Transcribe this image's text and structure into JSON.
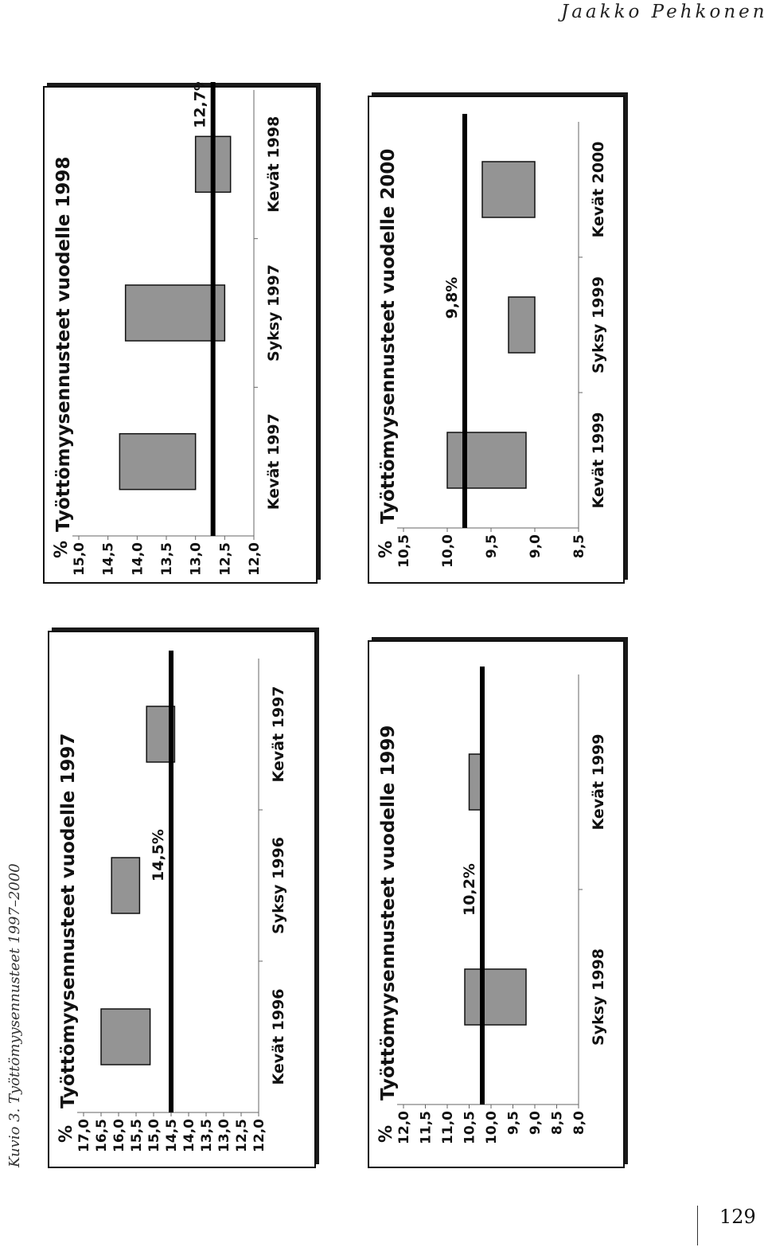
{
  "header": {
    "running_head": "Jaakko Pehkonen"
  },
  "caption": "Kuvio 3. Työttömyysennusteet 1997–2000",
  "page_number": "129",
  "chart_data": [
    {
      "type": "floating-bar",
      "title": "Työttömyysennusteet vuodelle 1997",
      "unit_label": "%",
      "ylim": [
        12.0,
        17.0
      ],
      "yticks": [
        "17,0",
        "16,5",
        "16,0",
        "15,5",
        "15,0",
        "14,5",
        "14,0",
        "13,5",
        "13,0",
        "12,5",
        "12,0"
      ],
      "categories": [
        "Kevät 1996",
        "Syksy 1996",
        "Kevät 1997"
      ],
      "ranges": [
        [
          15.1,
          16.5
        ],
        [
          15.4,
          16.2
        ],
        [
          14.4,
          15.2
        ]
      ],
      "reference_value": 14.5,
      "reference_label": "14,5%"
    },
    {
      "type": "floating-bar",
      "title": "Työttömyysennusteet vuodelle 1998",
      "unit_label": "%",
      "ylim": [
        12.0,
        15.0
      ],
      "yticks": [
        "15,0",
        "14,5",
        "14,0",
        "13,5",
        "13,0",
        "12,5",
        "12,0"
      ],
      "categories": [
        "Kevät 1997",
        "Syksy 1997",
        "Kevät 1998"
      ],
      "ranges": [
        [
          13.0,
          14.3
        ],
        [
          12.5,
          14.2
        ],
        [
          12.4,
          13.0
        ]
      ],
      "reference_value": 12.7,
      "reference_label": "12,7%"
    },
    {
      "type": "floating-bar",
      "title": "Työttömyysennusteet vuodelle 1999",
      "unit_label": "%",
      "ylim": [
        8.0,
        12.0
      ],
      "yticks": [
        "12,0",
        "11,5",
        "11,0",
        "10,5",
        "10,0",
        "9,5",
        "9,0",
        "8,5",
        "8,0"
      ],
      "categories": [
        "Syksy 1998",
        "Kevät 1999"
      ],
      "ranges": [
        [
          9.2,
          10.6
        ],
        [
          10.2,
          10.5
        ]
      ],
      "reference_value": 10.2,
      "reference_label": "10,2%"
    },
    {
      "type": "floating-bar",
      "title": "Työttömyysennusteet vuodelle 2000",
      "unit_label": "%",
      "ylim": [
        8.5,
        10.5
      ],
      "yticks": [
        "10,5",
        "10,0",
        "9,5",
        "9,0",
        "8,5"
      ],
      "categories": [
        "Kevät 1999",
        "Syksy 1999",
        "Kevät 2000"
      ],
      "ranges": [
        [
          9.1,
          10.0
        ],
        [
          9.0,
          9.3
        ],
        [
          9.0,
          9.6
        ]
      ],
      "reference_value": 9.8,
      "reference_label": "9,8%"
    }
  ]
}
